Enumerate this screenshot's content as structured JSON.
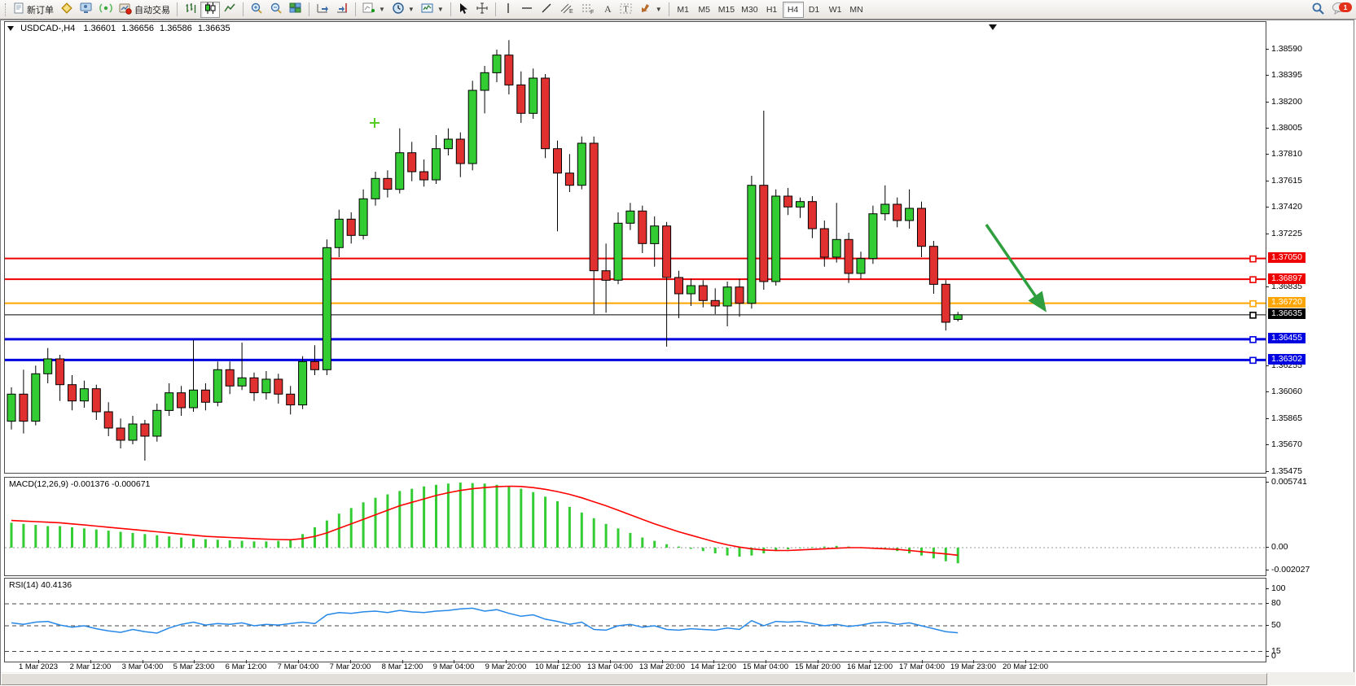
{
  "toolbar": {
    "new_order_label": "新订单",
    "autotrade_label": "自动交易",
    "timeframes": [
      "M1",
      "M5",
      "M15",
      "M30",
      "H1",
      "H4",
      "D1",
      "W1",
      "MN"
    ],
    "selected_timeframe": "H4",
    "notification_badge": "1"
  },
  "chart": {
    "title": {
      "symbol_period": "USDCAD-,H4",
      "open": "1.36601",
      "high": "1.36656",
      "low": "1.36586",
      "close": "1.36635"
    }
  },
  "chart_data": {
    "type": "candlestick",
    "symbol": "USDCAD-",
    "timeframe": "H4",
    "colors": {
      "bull": "#33cc33",
      "bear": "#e03030",
      "wick": "#000000",
      "macd_hist": "#33cc33",
      "macd_signal": "#ff0000",
      "rsi_line": "#2688e8",
      "arrow": "#2f9e3f",
      "plus_marker": "#55cc22"
    },
    "price_axis": {
      "min": 1.35475,
      "max": 1.3859,
      "ticks": [
        "1.38590",
        "1.38395",
        "1.38200",
        "1.38005",
        "1.37810",
        "1.37615",
        "1.37420",
        "1.37225",
        "1.36835",
        "1.36255",
        "1.36060",
        "1.35865",
        "1.35670",
        "1.35475"
      ]
    },
    "hlines": [
      {
        "price": 1.3705,
        "label": "1.37050",
        "color": "#ee0000",
        "width": 2
      },
      {
        "price": 1.36897,
        "label": "1.36897",
        "color": "#ee0000",
        "width": 2
      },
      {
        "price": 1.3672,
        "label": "1.36720",
        "color": "#ffa500",
        "width": 2
      },
      {
        "price": 1.36635,
        "label": "1.36635",
        "color": "#000000",
        "width": 1
      },
      {
        "price": 1.36455,
        "label": "1.36455",
        "color": "#0000e0",
        "width": 3
      },
      {
        "price": 1.36302,
        "label": "1.36302",
        "color": "#0000e0",
        "width": 3
      }
    ],
    "current_price": "1.36635",
    "time_axis_labels": [
      "1 Mar 2023",
      "2 Mar 12:00",
      "3 Mar 04:00",
      "5 Mar 23:00",
      "6 Mar 12:00",
      "7 Mar 04:00",
      "7 Mar 20:00",
      "8 Mar 12:00",
      "9 Mar 04:00",
      "9 Mar 20:00",
      "10 Mar 12:00",
      "13 Mar 04:00",
      "13 Mar 20:00",
      "14 Mar 12:00",
      "15 Mar 04:00",
      "15 Mar 20:00",
      "16 Mar 12:00",
      "17 Mar 04:00",
      "19 Mar 23:00",
      "20 Mar 12:00"
    ],
    "candles": {
      "columns": [
        "time",
        "open",
        "high",
        "low",
        "close"
      ],
      "rows": [
        [
          "1 Mar 00:00",
          1.3585,
          1.361,
          1.3579,
          1.3605
        ],
        [
          "1 Mar 04:00",
          1.3605,
          1.3623,
          1.3576,
          1.3585
        ],
        [
          "1 Mar 08:00",
          1.3585,
          1.3626,
          1.3582,
          1.362
        ],
        [
          "1 Mar 12:00",
          1.362,
          1.3639,
          1.3613,
          1.3631
        ],
        [
          "1 Mar 16:00",
          1.3631,
          1.3634,
          1.36,
          1.3612
        ],
        [
          "1 Mar 20:00",
          1.3612,
          1.3619,
          1.3593,
          1.36
        ],
        [
          "2 Mar 00:00",
          1.36,
          1.3615,
          1.3595,
          1.3609
        ],
        [
          "2 Mar 04:00",
          1.3609,
          1.3612,
          1.3586,
          1.3592
        ],
        [
          "2 Mar 08:00",
          1.3592,
          1.3599,
          1.3574,
          1.358
        ],
        [
          "2 Mar 12:00",
          1.358,
          1.3587,
          1.3565,
          1.3571
        ],
        [
          "2 Mar 16:00",
          1.3571,
          1.3589,
          1.3568,
          1.3583
        ],
        [
          "2 Mar 20:00",
          1.3583,
          1.3586,
          1.3556,
          1.3574
        ],
        [
          "3 Mar 00:00",
          1.3574,
          1.3598,
          1.357,
          1.3593
        ],
        [
          "3 Mar 04:00",
          1.3593,
          1.3613,
          1.3589,
          1.3606
        ],
        [
          "3 Mar 08:00",
          1.3606,
          1.3611,
          1.3589,
          1.3595
        ],
        [
          "3 Mar 12:00",
          1.3595,
          1.3645,
          1.3592,
          1.3608
        ],
        [
          "3 Mar 16:00",
          1.3608,
          1.3613,
          1.3593,
          1.3599
        ],
        [
          "3 Mar 20:00",
          1.3599,
          1.3629,
          1.3596,
          1.3623
        ],
        [
          "6 Mar 00:00",
          1.3623,
          1.3629,
          1.3605,
          1.3611
        ],
        [
          "6 Mar 04:00",
          1.3611,
          1.3643,
          1.3608,
          1.3617
        ],
        [
          "6 Mar 08:00",
          1.3617,
          1.3621,
          1.36,
          1.3606
        ],
        [
          "6 Mar 12:00",
          1.3606,
          1.3622,
          1.3601,
          1.3616
        ],
        [
          "6 Mar 16:00",
          1.3616,
          1.362,
          1.3598,
          1.3605
        ],
        [
          "6 Mar 20:00",
          1.3605,
          1.3611,
          1.359,
          1.3597
        ],
        [
          "7 Mar 00:00",
          1.3597,
          1.3633,
          1.3594,
          1.3629
        ],
        [
          "7 Mar 04:00",
          1.3629,
          1.3641,
          1.3619,
          1.3623
        ],
        [
          "7 Mar 08:00",
          1.3623,
          1.3719,
          1.3619,
          1.3713
        ],
        [
          "7 Mar 12:00",
          1.3713,
          1.3741,
          1.3706,
          1.3734
        ],
        [
          "7 Mar 16:00",
          1.3734,
          1.3739,
          1.3716,
          1.3722
        ],
        [
          "7 Mar 20:00",
          1.3722,
          1.3756,
          1.3719,
          1.3749
        ],
        [
          "8 Mar 00:00",
          1.3749,
          1.3769,
          1.3744,
          1.3764
        ],
        [
          "8 Mar 04:00",
          1.3764,
          1.377,
          1.375,
          1.3756
        ],
        [
          "8 Mar 08:00",
          1.3756,
          1.3801,
          1.3753,
          1.3783
        ],
        [
          "8 Mar 12:00",
          1.3783,
          1.3791,
          1.3762,
          1.3769
        ],
        [
          "8 Mar 16:00",
          1.3769,
          1.3778,
          1.3758,
          1.3763
        ],
        [
          "8 Mar 20:00",
          1.3763,
          1.3796,
          1.376,
          1.3786
        ],
        [
          "9 Mar 00:00",
          1.3786,
          1.3801,
          1.3781,
          1.3793
        ],
        [
          "9 Mar 04:00",
          1.3793,
          1.3798,
          1.3765,
          1.3775
        ],
        [
          "9 Mar 08:00",
          1.3775,
          1.3836,
          1.377,
          1.3829
        ],
        [
          "9 Mar 12:00",
          1.3829,
          1.3847,
          1.3812,
          1.3842
        ],
        [
          "9 Mar 16:00",
          1.3842,
          1.3859,
          1.3835,
          1.3855
        ],
        [
          "9 Mar 20:00",
          1.3855,
          1.3866,
          1.3826,
          1.3833
        ],
        [
          "10 Mar 00:00",
          1.3833,
          1.3843,
          1.3805,
          1.3812
        ],
        [
          "10 Mar 04:00",
          1.3812,
          1.3845,
          1.3808,
          1.3838
        ],
        [
          "10 Mar 08:00",
          1.3838,
          1.3841,
          1.3779,
          1.3786
        ],
        [
          "10 Mar 12:00",
          1.3786,
          1.3792,
          1.3725,
          1.3768
        ],
        [
          "10 Mar 16:00",
          1.3768,
          1.3782,
          1.3754,
          1.3759
        ],
        [
          "10 Mar 20:00",
          1.3759,
          1.3795,
          1.3756,
          1.379
        ],
        [
          "13 Mar 00:00",
          1.379,
          1.3795,
          1.3664,
          1.3696
        ],
        [
          "13 Mar 04:00",
          1.3696,
          1.3716,
          1.3665,
          1.3689
        ],
        [
          "13 Mar 08:00",
          1.3689,
          1.3739,
          1.3686,
          1.3731
        ],
        [
          "13 Mar 12:00",
          1.3731,
          1.3746,
          1.3726,
          1.374
        ],
        [
          "13 Mar 16:00",
          1.374,
          1.3744,
          1.3709,
          1.3716
        ],
        [
          "13 Mar 20:00",
          1.3716,
          1.3736,
          1.3699,
          1.3729
        ],
        [
          "14 Mar 00:00",
          1.3729,
          1.3732,
          1.364,
          1.3691
        ],
        [
          "14 Mar 04:00",
          1.3691,
          1.3696,
          1.3661,
          1.3679
        ],
        [
          "14 Mar 08:00",
          1.3679,
          1.369,
          1.367,
          1.3685
        ],
        [
          "14 Mar 12:00",
          1.3685,
          1.3689,
          1.3669,
          1.3674
        ],
        [
          "14 Mar 16:00",
          1.3674,
          1.3683,
          1.3664,
          1.367
        ],
        [
          "14 Mar 20:00",
          1.367,
          1.3688,
          1.3655,
          1.3684
        ],
        [
          "15 Mar 00:00",
          1.3684,
          1.369,
          1.3662,
          1.3672
        ],
        [
          "15 Mar 04:00",
          1.3672,
          1.3766,
          1.3668,
          1.3759
        ],
        [
          "15 Mar 08:00",
          1.3759,
          1.3814,
          1.3682,
          1.3688
        ],
        [
          "15 Mar 12:00",
          1.3688,
          1.3756,
          1.3685,
          1.3751
        ],
        [
          "15 Mar 16:00",
          1.3751,
          1.3757,
          1.3737,
          1.3743
        ],
        [
          "15 Mar 20:00",
          1.3743,
          1.375,
          1.3735,
          1.3747
        ],
        [
          "16 Mar 00:00",
          1.3747,
          1.3751,
          1.372,
          1.3727
        ],
        [
          "16 Mar 04:00",
          1.3727,
          1.3733,
          1.3699,
          1.3706
        ],
        [
          "16 Mar 08:00",
          1.3706,
          1.3746,
          1.3702,
          1.3719
        ],
        [
          "16 Mar 12:00",
          1.3719,
          1.3724,
          1.3687,
          1.3694
        ],
        [
          "16 Mar 16:00",
          1.3694,
          1.371,
          1.369,
          1.3705
        ],
        [
          "16 Mar 20:00",
          1.3705,
          1.3744,
          1.3701,
          1.3738
        ],
        [
          "17 Mar 00:00",
          1.3738,
          1.3759,
          1.3733,
          1.3745
        ],
        [
          "17 Mar 04:00",
          1.3745,
          1.375,
          1.3728,
          1.3733
        ],
        [
          "17 Mar 08:00",
          1.3733,
          1.3756,
          1.3727,
          1.3742
        ],
        [
          "17 Mar 12:00",
          1.3742,
          1.3747,
          1.3706,
          1.3714
        ],
        [
          "17 Mar 16:00",
          1.3714,
          1.3718,
          1.3679,
          1.3686
        ],
        [
          "17 Mar 20:00",
          1.3686,
          1.3689,
          1.3652,
          1.3658
        ],
        [
          "19 Mar 23:00",
          1.36601,
          1.36656,
          1.36586,
          1.36635
        ]
      ]
    },
    "macd": {
      "label_name": "MACD(12,26,9)",
      "label_values": "-0.001376 -0.000671",
      "main_value": -0.001376,
      "signal_value": -0.000671,
      "axis": [
        {
          "v": 0.005741,
          "t": "0.005741"
        },
        {
          "v": 0,
          "t": "0.00"
        },
        {
          "v": -0.002027,
          "t": "-0.002027"
        }
      ],
      "histogram": [
        0.0022,
        0.0021,
        0.002,
        0.0019,
        0.0019,
        0.0018,
        0.0017,
        0.0016,
        0.0015,
        0.0014,
        0.0013,
        0.0012,
        0.0011,
        0.001,
        0.0009,
        0.0008,
        0.00075,
        0.0007,
        0.00065,
        0.0006,
        0.00055,
        0.00055,
        0.0006,
        0.0007,
        0.0012,
        0.0018,
        0.0024,
        0.003,
        0.0035,
        0.004,
        0.0044,
        0.0047,
        0.005,
        0.0052,
        0.0054,
        0.00555,
        0.00565,
        0.005741,
        0.0057,
        0.00565,
        0.00555,
        0.00545,
        0.0052,
        0.0049,
        0.0045,
        0.0041,
        0.0036,
        0.0031,
        0.0026,
        0.0021,
        0.0017,
        0.0013,
        0.0009,
        0.0006,
        0.0003,
        0.0001,
        -0.0001,
        -0.0003,
        -0.0005,
        -0.0007,
        -0.0008,
        -0.0007,
        -0.0005,
        -0.0003,
        -0.00015,
        -5e-05,
        5e-05,
        0.0001,
        0.00015,
        0.0001,
        5e-05,
        -5e-05,
        -0.00015,
        -0.0003,
        -0.0005,
        -0.0007,
        -0.00095,
        -0.0012,
        -0.001376
      ],
      "signal": [
        0.0024,
        0.00235,
        0.0023,
        0.00225,
        0.0022,
        0.0021,
        0.002,
        0.0019,
        0.0018,
        0.0017,
        0.0016,
        0.0015,
        0.0014,
        0.0013,
        0.0012,
        0.0011,
        0.001,
        0.00095,
        0.0009,
        0.00085,
        0.0008,
        0.00075,
        0.00072,
        0.0007,
        0.0008,
        0.001,
        0.0013,
        0.0017,
        0.0021,
        0.0025,
        0.0029,
        0.0033,
        0.0037,
        0.004,
        0.0043,
        0.0046,
        0.00485,
        0.00505,
        0.0052,
        0.0053,
        0.00538,
        0.00542,
        0.0054,
        0.0053,
        0.00515,
        0.00495,
        0.0047,
        0.0044,
        0.00405,
        0.0037,
        0.0033,
        0.0029,
        0.0025,
        0.0021,
        0.00175,
        0.0014,
        0.0011,
        0.0008,
        0.0005,
        0.00025,
        5e-05,
        -0.0001,
        -0.0002,
        -0.00025,
        -0.00025,
        -0.0002,
        -0.00015,
        -0.0001,
        -5e-05,
        0.0,
        0.0,
        -5e-05,
        -0.0001,
        -0.00015,
        -0.00025,
        -0.00035,
        -0.00045,
        -0.00055,
        -0.000671
      ]
    },
    "rsi": {
      "label_name": "RSI(14)",
      "label_value": "40.4136",
      "axis": [
        {
          "v": 100,
          "t": "100"
        },
        {
          "v": 80,
          "t": "80"
        },
        {
          "v": 50,
          "t": "50"
        },
        {
          "v": 15,
          "t": "15"
        },
        {
          "v": 0,
          "t": "0"
        }
      ],
      "levels": [
        80,
        50,
        15
      ],
      "series": [
        54,
        52,
        55,
        56,
        51,
        48,
        50,
        46,
        43,
        41,
        45,
        42,
        40,
        47,
        52,
        55,
        51,
        53,
        52,
        54,
        50,
        52,
        51,
        53,
        55,
        53,
        65,
        68,
        67,
        69,
        70,
        68,
        71,
        69,
        68,
        70,
        71,
        73,
        74,
        70,
        72,
        67,
        63,
        65,
        59,
        56,
        52,
        55,
        45,
        44,
        50,
        52,
        48,
        50,
        45,
        44,
        46,
        45,
        44,
        47,
        45,
        57,
        50,
        56,
        55,
        56,
        53,
        50,
        52,
        49,
        51,
        54,
        55,
        52,
        54,
        50,
        46,
        42,
        40.4136
      ]
    },
    "annotations": [
      {
        "type": "arrow",
        "desc": "green down-right trend arrow",
        "from_price": 1.373,
        "to_price": 1.3668,
        "color": "#2f9e3f"
      },
      {
        "type": "plus-marker",
        "desc": "lime plus marker above 8 Mar candles",
        "price": 1.3805,
        "color": "#55cc22"
      }
    ]
  }
}
